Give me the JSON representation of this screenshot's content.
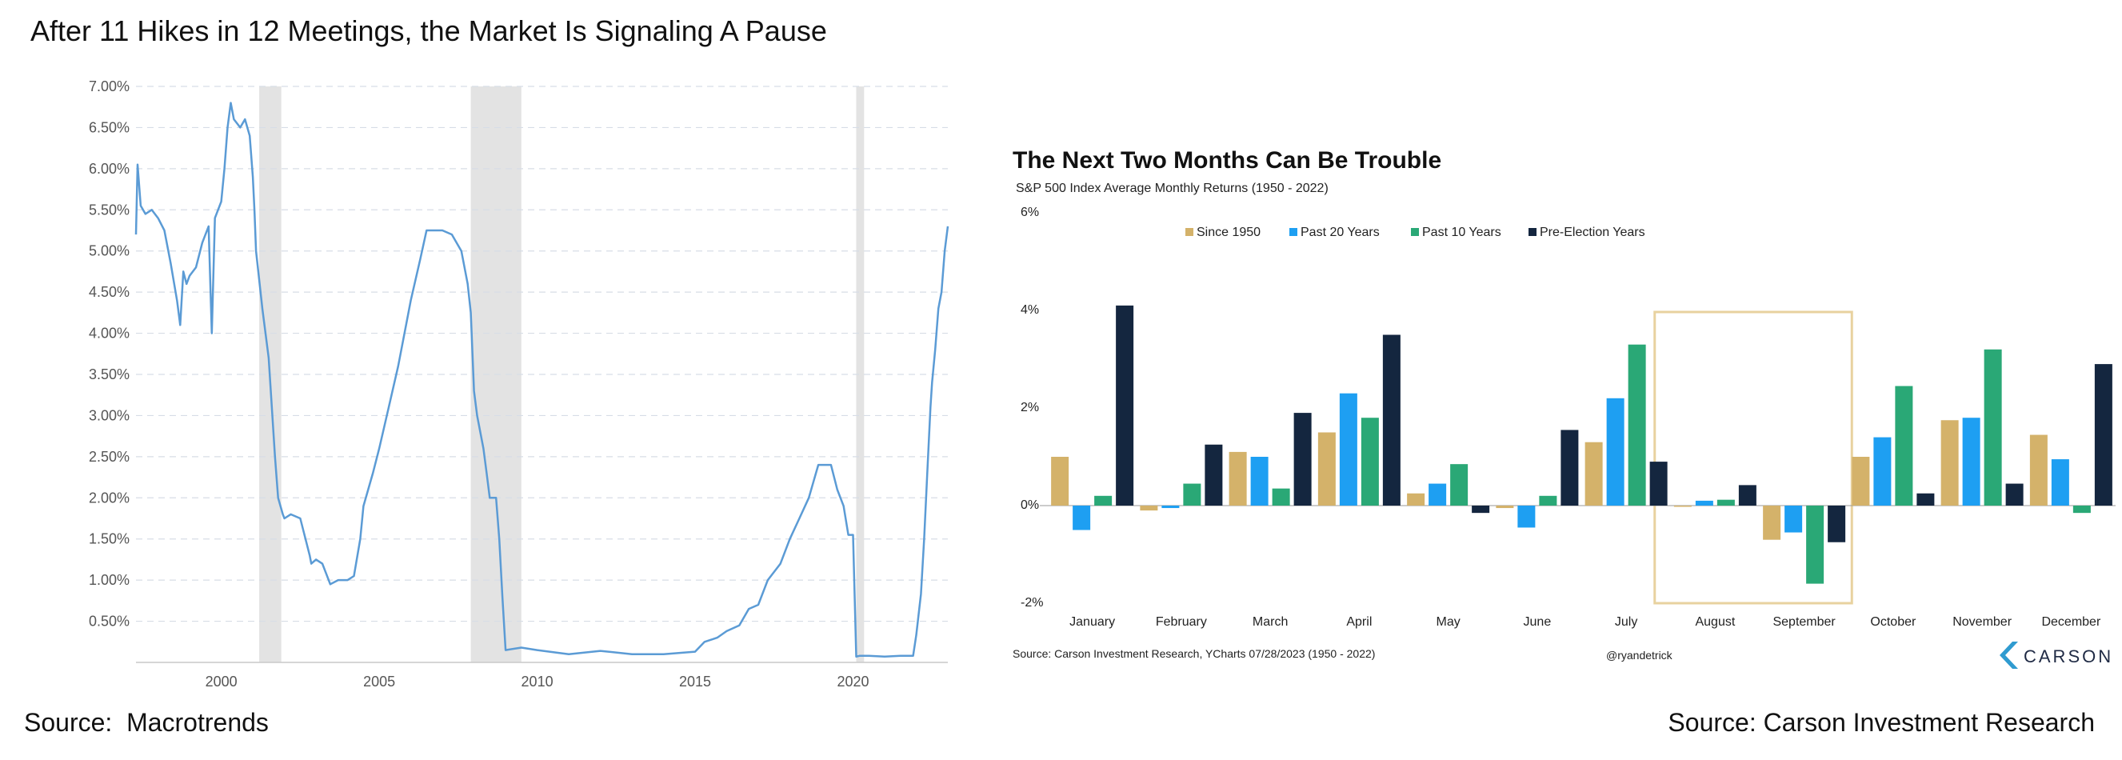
{
  "slide": {
    "title": "After 11 Hikes in 12 Meetings, the Market Is Signaling A Pause",
    "source_left": "Source:  Macrotrends",
    "source_right": "Source: Carson Investment Research"
  },
  "colors": {
    "line": "#5b9bd5",
    "recession": "#e3e3e3",
    "grid": "#d7dde6",
    "since1950": "#d4b26a",
    "past20": "#1e9ff2",
    "past10": "#2aa876",
    "preElection": "#14263f",
    "highlight": "#e8d29f",
    "carson": "#2f9bd0"
  },
  "chart_data": [
    {
      "type": "line",
      "title": "",
      "xlabel": "",
      "ylabel": "",
      "xlim": [
        1997.3,
        2023.0
      ],
      "ylim": [
        0,
        7.0
      ],
      "y_ticks": [
        "0.50%",
        "1.00%",
        "1.50%",
        "2.00%",
        "2.50%",
        "3.00%",
        "3.50%",
        "4.00%",
        "4.50%",
        "5.00%",
        "5.50%",
        "6.00%",
        "6.50%",
        "7.00%"
      ],
      "x_ticks": [
        "2000",
        "2005",
        "2010",
        "2015",
        "2020"
      ],
      "grid": true,
      "recessions": [
        [
          2001.2,
          2001.9
        ],
        [
          2007.9,
          2009.5
        ],
        [
          2020.1,
          2020.35
        ]
      ],
      "series": [
        {
          "x": [
            1997.3,
            1997.35,
            1997.45,
            1997.6,
            1997.8,
            1998.0,
            1998.2,
            1998.4,
            1998.6,
            1998.7,
            1998.8,
            1998.9,
            1999.0,
            1999.2,
            1999.4,
            1999.6,
            1999.7,
            1999.8,
            2000.0,
            2000.1,
            2000.2,
            2000.3,
            2000.4,
            2000.5,
            2000.6,
            2000.75,
            2000.9,
            2001.0,
            2001.05,
            2001.1,
            2001.3,
            2001.5,
            2001.7,
            2001.8,
            2001.95,
            2002.0,
            2002.2,
            2002.5,
            2002.8,
            2002.85,
            2003.0,
            2003.2,
            2003.4,
            2003.45,
            2003.7,
            2004.0,
            2004.2,
            2004.4,
            2004.5,
            2004.8,
            2005.0,
            2005.3,
            2005.6,
            2006.0,
            2006.3,
            2006.5,
            2006.8,
            2007.0,
            2007.3,
            2007.6,
            2007.8,
            2007.9,
            2008.0,
            2008.1,
            2008.3,
            2008.4,
            2008.5,
            2008.7,
            2008.8,
            2008.9,
            2009.0,
            2009.5,
            2010.0,
            2011.0,
            2012.0,
            2013.0,
            2014.0,
            2015.0,
            2015.3,
            2015.7,
            2016.0,
            2016.4,
            2016.7,
            2017.0,
            2017.3,
            2017.7,
            2018.0,
            2018.3,
            2018.6,
            2018.9,
            2019.1,
            2019.3,
            2019.5,
            2019.7,
            2019.85,
            2019.95,
            2020.0,
            2020.1,
            2020.2,
            2020.5,
            2021.0,
            2021.5,
            2021.9,
            2022.0,
            2022.15,
            2022.25,
            2022.35,
            2022.45,
            2022.5,
            2022.6,
            2022.7,
            2022.8,
            2022.9,
            2023.0
          ],
          "y": [
            5.2,
            6.05,
            5.55,
            5.45,
            5.5,
            5.4,
            5.25,
            4.85,
            4.4,
            4.1,
            4.75,
            4.6,
            4.7,
            4.8,
            5.1,
            5.3,
            4.0,
            5.4,
            5.6,
            6.0,
            6.5,
            6.8,
            6.6,
            6.55,
            6.5,
            6.6,
            6.4,
            5.9,
            5.5,
            5.0,
            4.3,
            3.7,
            2.5,
            2.0,
            1.8,
            1.75,
            1.8,
            1.75,
            1.3,
            1.2,
            1.25,
            1.2,
            1.0,
            0.95,
            1.0,
            1.0,
            1.05,
            1.5,
            1.9,
            2.3,
            2.6,
            3.1,
            3.6,
            4.4,
            4.9,
            5.25,
            5.25,
            5.25,
            5.2,
            5.0,
            4.6,
            4.25,
            3.3,
            3.0,
            2.6,
            2.3,
            2.0,
            2.0,
            1.5,
            0.8,
            0.15,
            0.18,
            0.15,
            0.1,
            0.14,
            0.1,
            0.1,
            0.13,
            0.25,
            0.3,
            0.38,
            0.45,
            0.65,
            0.7,
            1.0,
            1.2,
            1.5,
            1.75,
            2.0,
            2.4,
            2.4,
            2.4,
            2.1,
            1.9,
            1.55,
            1.55,
            1.55,
            0.07,
            0.08,
            0.08,
            0.07,
            0.08,
            0.08,
            0.33,
            0.83,
            1.5,
            2.3,
            3.1,
            3.4,
            3.8,
            4.3,
            4.5,
            5.0,
            5.3
          ]
        }
      ]
    },
    {
      "type": "bar",
      "title": "The Next Two Months Can Be Trouble",
      "subtitle": "S&P 500 Index Average Monthly Returns (1950 - 2022)",
      "xlabel": "",
      "ylabel": "",
      "ylim": [
        -2,
        6
      ],
      "y_ticks": [
        "6%",
        "4%",
        "2%",
        "0%",
        "-2%"
      ],
      "legend_position": "top",
      "categories": [
        "January",
        "February",
        "March",
        "April",
        "May",
        "June",
        "July",
        "August",
        "September",
        "October",
        "November",
        "December"
      ],
      "highlight": [
        "August",
        "September"
      ],
      "series": [
        {
          "name": "Since 1950",
          "values": [
            1.0,
            -0.1,
            1.1,
            1.5,
            0.25,
            -0.05,
            1.3,
            0.0,
            -0.7,
            1.0,
            1.75,
            1.45
          ]
        },
        {
          "name": "Past 20 Years",
          "values": [
            -0.5,
            -0.05,
            1.0,
            2.3,
            0.45,
            -0.45,
            2.2,
            0.1,
            -0.55,
            1.4,
            1.8,
            0.95
          ]
        },
        {
          "name": "Past 10 Years",
          "values": [
            0.2,
            0.45,
            0.35,
            1.8,
            0.85,
            0.2,
            3.3,
            0.12,
            -1.6,
            2.45,
            3.2,
            -0.15
          ]
        },
        {
          "name": "Pre-Election Years",
          "values": [
            4.1,
            1.25,
            1.9,
            3.5,
            -0.15,
            1.55,
            0.9,
            0.42,
            -0.75,
            0.25,
            0.45,
            2.9
          ]
        }
      ],
      "source": "Source: Carson Investment Research, YCharts 07/28/2023 (1950 - 2022)",
      "handle": "@ryandetrick",
      "logo_text": "CARSON"
    }
  ]
}
